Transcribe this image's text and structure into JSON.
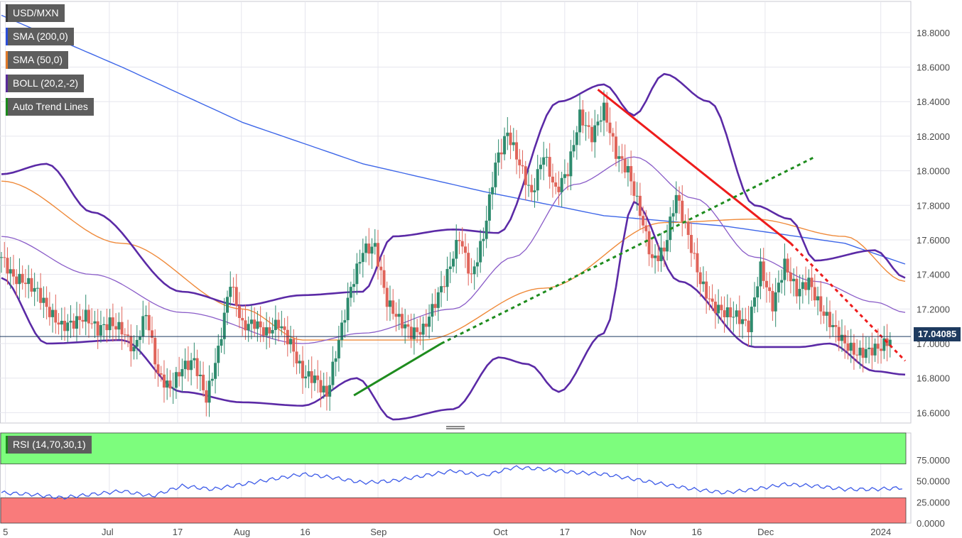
{
  "legend": [
    {
      "label": "USD/MXN",
      "color": "#3a3a3a"
    },
    {
      "label": "SMA (200,0)",
      "color": "#2a4dd8"
    },
    {
      "label": "SMA (50,0)",
      "color": "#e07a2a"
    },
    {
      "label": "BOLL (20,2,-2)",
      "color": "#5a2a9a"
    },
    {
      "label": "Auto Trend Lines",
      "color": "#1a8a1a"
    }
  ],
  "rsi_legend": {
    "label": "RSI (14,70,30,1)",
    "color": "#1a8a1a"
  },
  "last_price": "17.04085",
  "colors": {
    "bull": "#2e8b6e",
    "bear": "#e0645a",
    "sma200": "#3d66e8",
    "sma50": "#ef8a3a",
    "boll_outer": "#5b2aa6",
    "boll_mid": "#8a5cc8",
    "trend_down": "#ee1c1c",
    "trend_up": "#1e8c1e",
    "rsi_line": "#3d5be8",
    "rsi_over": "#7dfd7d",
    "rsi_under": "#f97b7b"
  },
  "chart_data": [
    {
      "type": "candlestick",
      "title": "USD/MXN",
      "x_tick_labels": [
        "5",
        "Jul",
        "17",
        "Aug",
        "16",
        "Sep",
        "Oct",
        "17",
        "Nov",
        "16",
        "Dec",
        "2024"
      ],
      "y_tick_labels": [
        "18.8000",
        "18.6000",
        "18.4000",
        "18.2000",
        "18.0000",
        "17.8000",
        "17.6000",
        "17.4000",
        "17.2000",
        "17.0000",
        "16.8000",
        "16.6000"
      ],
      "ylim": [
        16.54,
        18.98
      ],
      "grid": true,
      "series_close_approx": [
        [
          0,
          17.5
        ],
        [
          4,
          17.38
        ],
        [
          8,
          17.36
        ],
        [
          12,
          17.3
        ],
        [
          16,
          17.18
        ],
        [
          20,
          17.1
        ],
        [
          24,
          17.12
        ],
        [
          28,
          17.16
        ],
        [
          32,
          17.08
        ],
        [
          36,
          17.12
        ],
        [
          40,
          17.08
        ],
        [
          44,
          16.96
        ],
        [
          48,
          17.18
        ],
        [
          52,
          16.82
        ],
        [
          56,
          16.74
        ],
        [
          60,
          16.86
        ],
        [
          64,
          16.9
        ],
        [
          68,
          16.68
        ],
        [
          72,
          16.96
        ],
        [
          76,
          17.36
        ],
        [
          80,
          17.1
        ],
        [
          84,
          17.12
        ],
        [
          88,
          17.06
        ],
        [
          92,
          17.12
        ],
        [
          96,
          17.0
        ],
        [
          100,
          16.82
        ],
        [
          104,
          16.8
        ],
        [
          108,
          16.7
        ],
        [
          112,
          17.02
        ],
        [
          116,
          17.32
        ],
        [
          120,
          17.54
        ],
        [
          124,
          17.56
        ],
        [
          128,
          17.24
        ],
        [
          132,
          17.14
        ],
        [
          136,
          17.06
        ],
        [
          140,
          17.08
        ],
        [
          144,
          17.24
        ],
        [
          148,
          17.4
        ],
        [
          152,
          17.62
        ],
        [
          156,
          17.38
        ],
        [
          160,
          17.62
        ],
        [
          164,
          18.04
        ],
        [
          168,
          18.22
        ],
        [
          172,
          18.04
        ],
        [
          176,
          17.86
        ],
        [
          180,
          18.1
        ],
        [
          184,
          17.88
        ],
        [
          188,
          18.0
        ],
        [
          192,
          18.32
        ],
        [
          196,
          18.2
        ],
        [
          200,
          18.36
        ],
        [
          204,
          18.1
        ],
        [
          208,
          18.0
        ],
        [
          212,
          17.76
        ],
        [
          216,
          17.48
        ],
        [
          220,
          17.54
        ],
        [
          224,
          17.86
        ],
        [
          228,
          17.62
        ],
        [
          232,
          17.36
        ],
        [
          236,
          17.22
        ],
        [
          240,
          17.18
        ],
        [
          244,
          17.16
        ],
        [
          248,
          17.1
        ],
        [
          252,
          17.44
        ],
        [
          256,
          17.22
        ],
        [
          260,
          17.46
        ],
        [
          264,
          17.3
        ],
        [
          268,
          17.36
        ],
        [
          272,
          17.2
        ],
        [
          276,
          17.1
        ],
        [
          280,
          17.0
        ],
        [
          284,
          16.94
        ],
        [
          288,
          16.96
        ],
        [
          292,
          16.98
        ],
        [
          296,
          17.04
        ]
      ],
      "sma200": [
        [
          0,
          18.9
        ],
        [
          40,
          18.6
        ],
        [
          80,
          18.28
        ],
        [
          120,
          18.04
        ],
        [
          160,
          17.88
        ],
        [
          200,
          17.74
        ],
        [
          240,
          17.68
        ],
        [
          280,
          17.58
        ],
        [
          300,
          17.46
        ]
      ],
      "sma50": [
        [
          0,
          17.94
        ],
        [
          40,
          17.58
        ],
        [
          80,
          17.2
        ],
        [
          100,
          17.02
        ],
        [
          140,
          17.02
        ],
        [
          180,
          17.32
        ],
        [
          220,
          17.7
        ],
        [
          250,
          17.72
        ],
        [
          280,
          17.62
        ],
        [
          300,
          17.36
        ]
      ],
      "boll_mid": [
        [
          0,
          17.62
        ],
        [
          30,
          17.4
        ],
        [
          60,
          17.18
        ],
        [
          100,
          17.0
        ],
        [
          120,
          17.06
        ],
        [
          150,
          17.2
        ],
        [
          170,
          17.5
        ],
        [
          190,
          17.92
        ],
        [
          210,
          18.08
        ],
        [
          230,
          17.84
        ],
        [
          250,
          17.5
        ],
        [
          270,
          17.36
        ],
        [
          290,
          17.24
        ],
        [
          300,
          17.18
        ]
      ],
      "boll_upper": [
        [
          0,
          17.98
        ],
        [
          15,
          18.04
        ],
        [
          30,
          17.76
        ],
        [
          60,
          17.3
        ],
        [
          80,
          17.22
        ],
        [
          100,
          17.28
        ],
        [
          120,
          17.3
        ],
        [
          130,
          17.62
        ],
        [
          150,
          17.66
        ],
        [
          165,
          17.64
        ],
        [
          185,
          18.4
        ],
        [
          200,
          18.5
        ],
        [
          210,
          18.32
        ],
        [
          220,
          18.56
        ],
        [
          235,
          18.4
        ],
        [
          250,
          17.8
        ],
        [
          262,
          17.72
        ],
        [
          270,
          17.48
        ],
        [
          290,
          17.54
        ],
        [
          300,
          17.38
        ]
      ],
      "boll_lower": [
        [
          0,
          17.38
        ],
        [
          15,
          17.0
        ],
        [
          40,
          17.02
        ],
        [
          60,
          16.72
        ],
        [
          80,
          16.66
        ],
        [
          100,
          16.64
        ],
        [
          118,
          16.8
        ],
        [
          130,
          16.56
        ],
        [
          150,
          16.62
        ],
        [
          165,
          16.92
        ],
        [
          175,
          16.88
        ],
        [
          185,
          16.72
        ],
        [
          200,
          17.06
        ],
        [
          210,
          17.82
        ],
        [
          225,
          17.36
        ],
        [
          250,
          16.98
        ],
        [
          265,
          16.98
        ],
        [
          275,
          17.0
        ],
        [
          290,
          16.84
        ],
        [
          300,
          16.82
        ]
      ],
      "trend_down_line": [
        [
          198,
          18.47
        ],
        [
          262,
          17.58
        ]
      ],
      "trend_down_projection": [
        [
          262,
          17.58
        ],
        [
          300,
          16.9
        ]
      ],
      "trend_up_line": [
        [
          117,
          16.7
        ],
        [
          146,
          17.0
        ]
      ],
      "trend_up_projection": [
        [
          146,
          17.0
        ],
        [
          270,
          18.08
        ]
      ]
    },
    {
      "type": "line",
      "title": "RSI (14,70,30,1)",
      "y_tick_labels": [
        "75.0000",
        "50.0000",
        "25.0000",
        "0.0000"
      ],
      "ylim": [
        0,
        100
      ],
      "overbought": 70,
      "oversold": 30,
      "values": [
        [
          0,
          36
        ],
        [
          10,
          34
        ],
        [
          20,
          30
        ],
        [
          30,
          34
        ],
        [
          40,
          38
        ],
        [
          50,
          32
        ],
        [
          60,
          44
        ],
        [
          70,
          40
        ],
        [
          80,
          46
        ],
        [
          90,
          52
        ],
        [
          100,
          58
        ],
        [
          110,
          54
        ],
        [
          120,
          48
        ],
        [
          130,
          50
        ],
        [
          140,
          56
        ],
        [
          150,
          62
        ],
        [
          160,
          56
        ],
        [
          170,
          66
        ],
        [
          180,
          64
        ],
        [
          190,
          60
        ],
        [
          200,
          58
        ],
        [
          210,
          52
        ],
        [
          220,
          46
        ],
        [
          230,
          40
        ],
        [
          240,
          36
        ],
        [
          250,
          40
        ],
        [
          260,
          46
        ],
        [
          270,
          44
        ],
        [
          280,
          40
        ],
        [
          290,
          40
        ],
        [
          300,
          42
        ]
      ]
    }
  ]
}
